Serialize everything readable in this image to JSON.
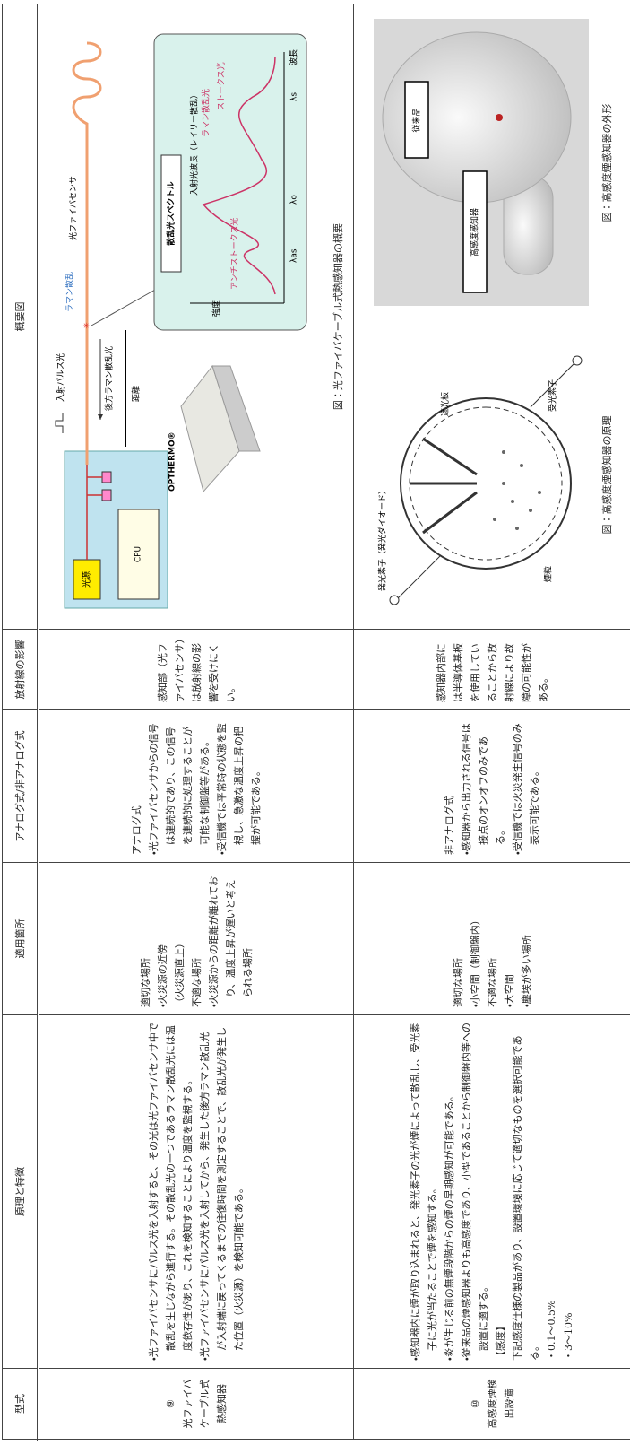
{
  "header": [
    "型式",
    "原理と特徴",
    "適用箇所",
    "アナログ式/非アナログ式",
    "放射線の影響",
    "概要図"
  ],
  "rows": [
    {
      "type": [
        "⑨",
        "光ファイバケーブル式熱感知器"
      ],
      "principle": [
        "・光ファイバセンサにパルス光を入射すると、その光は光ファイバセンサ中で散乱を生じながら進行する。その散乱光の一つであるラマン散乱光には温度依存性があり、これを検知することにより温度を監視する。",
        "・光ファイバセンサにパルス光を入射してから、発生した後方ラマン散乱光が入射端に戻ってくるまでの往復時間を測定することで、散乱光が発生した位置（火災源）を検知可能である。"
      ],
      "application": [
        "適切な場所",
        "・火災源の近傍",
        "（火災源直上）",
        "不適な場所",
        "・火災源からの距離が離れており、温度上昇が遅いと考えられる場所"
      ],
      "analog": [
        "アナログ式",
        "・光ファイバセンサからの信号は連続的であり、この信号を連続的に処理することが可能な制御盤等がある。",
        "・受信機では平常時の状態を監視し、急激な温度上昇の把握が可能である。"
      ],
      "radiation": [
        "感知部（光ファイバセンサ）は放射線の影響を受けにくい。"
      ],
      "figure": {
        "labels": [
          "光源",
          "CPU",
          "入射パルス光",
          "後方ラマン散乱光",
          "距離",
          "ラマン散乱",
          "光ファイバセンサ",
          "OPTHERMO®",
          "散乱光スペクトル",
          "強度",
          "アンチストークス光",
          "ストークス光",
          "ラマン散乱光",
          "入射光波長（レイリー散乱）",
          "λas",
          "λo",
          "λs",
          "波長"
        ],
        "caption": "図：光ファイバケーブル式熱感知器の概要"
      }
    },
    {
      "type": [
        "⑩",
        "高感度煙検出設備"
      ],
      "principle": [
        "・感知器内に煙が取り込まれると、発光素子の光が煙によって散乱し、受光素子に光が当たることで煙を感知する。",
        "・炎が生じる前の無煙段階からの煙の早期感知が可能である。",
        "・従来品の煙感知器よりも高感度であり、小型であることから制御盤内等への設置に適する。",
        "【感度】",
        "下記感度仕様の製品があり、設置環境に応じて適切なものを選択可能である。",
        "・0.1～0.5%",
        "・3～10%"
      ],
      "application": [
        "適切な場所",
        "・小空間（制御盤内）",
        "不適な場所",
        "・大空間",
        "・塵埃が多い場所"
      ],
      "analog": [
        "非アナログ式",
        "・感知器から出力される信号は接点のオンオフのみである。",
        "・受信機では火災発生信号のみ表示可能である。"
      ],
      "radiation": [
        "感知器内部には半導体基板を使用していることから放射線により故障の可能性がある。"
      ],
      "figures": [
        {
          "labels": [
            "発光素子（発光ダイオード）",
            "遮光板",
            "受光素子",
            "煙粒"
          ],
          "caption": "図：高感度煙感知器の原理"
        },
        {
          "labels": [
            "高感度感知器",
            "従来品"
          ],
          "caption": "図：高感度煙感知器の外形"
        }
      ]
    }
  ]
}
